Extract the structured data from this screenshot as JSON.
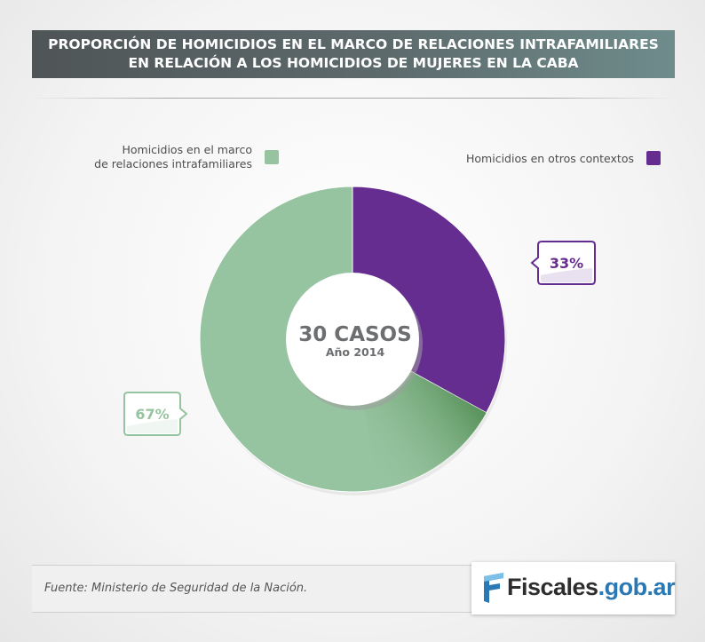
{
  "title": {
    "line1": "PROPORCIÓN DE HOMICIDIOS EN EL MARCO DE RELACIONES INTRAFAMILIARES",
    "line2": "EN RELACIÓN A LOS HOMICIDIOS DE MUJERES EN LA CABA"
  },
  "chart_data": {
    "type": "pie",
    "donut": true,
    "legend_position": "top",
    "center": {
      "main": "30 CASOS",
      "sub": "Año 2014"
    },
    "slices": [
      {
        "label_line1": "Homicidios en el marco",
        "label_line2": "de relaciones intrafamiliares",
        "value": 67,
        "value_label": "67%",
        "color": "#97c4a0"
      },
      {
        "label": "Homicidios en otros contextos",
        "value": 33,
        "value_label": "33%",
        "color": "#662d91"
      }
    ]
  },
  "footer": {
    "source": "Fuente: Ministerio de Seguridad de la Nación."
  },
  "logo": {
    "name": "Fiscales",
    "domain": ".gob.ar"
  },
  "colors": {
    "accent_blue": "#2a79b4",
    "title_bar": "#5d6a6c"
  }
}
